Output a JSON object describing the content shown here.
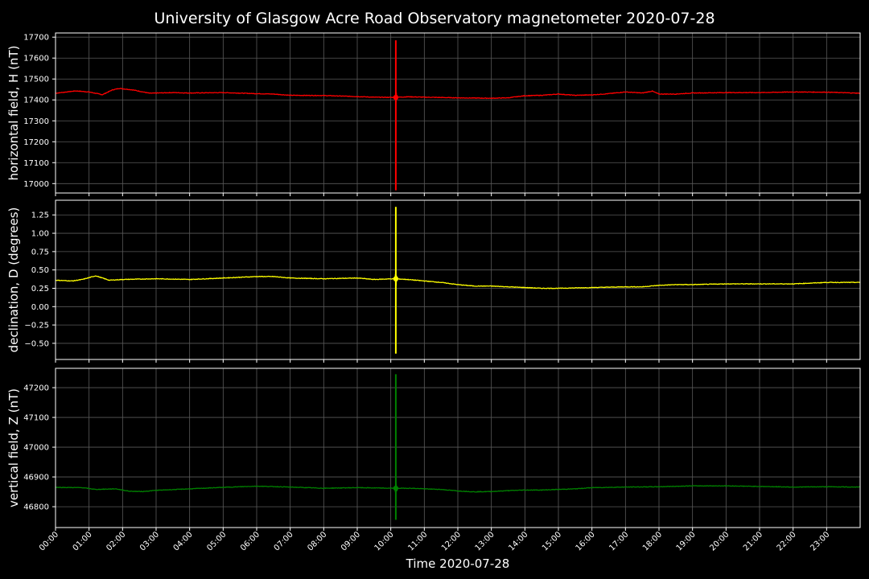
{
  "chart_data": {
    "type": "line",
    "title": "University of Glasgow Acre Road Observatory magnetometer 2020-07-28",
    "xlabel": "Time 2020-07-28",
    "x_ticks": [
      "00:00",
      "01:00",
      "02:00",
      "03:00",
      "04:00",
      "05:00",
      "06:00",
      "07:00",
      "08:00",
      "09:00",
      "10:00",
      "11:00",
      "12:00",
      "13:00",
      "14:00",
      "15:00",
      "16:00",
      "17:00",
      "18:00",
      "19:00",
      "20:00",
      "21:00",
      "22:00",
      "23:00"
    ],
    "x_range_hours": [
      0,
      24
    ],
    "grid": true,
    "background": "#000000",
    "grid_color": "#5a5a5a",
    "panels": [
      {
        "ylabel": "horizontal field, H (nT)",
        "color": "#ff0000",
        "ylim": [
          16955,
          17720
        ],
        "yticks": [
          17000,
          17100,
          17200,
          17300,
          17400,
          17500,
          17600,
          17700
        ],
        "ytick_labels": [
          "17000",
          "17100",
          "17200",
          "17300",
          "17400",
          "17500",
          "17600",
          "17700"
        ],
        "points": [
          [
            0,
            17432
          ],
          [
            0.6,
            17443
          ],
          [
            1,
            17438
          ],
          [
            1.4,
            17425
          ],
          [
            1.7,
            17448
          ],
          [
            1.9,
            17455
          ],
          [
            2.3,
            17448
          ],
          [
            2.8,
            17432
          ],
          [
            3.5,
            17435
          ],
          [
            4,
            17433
          ],
          [
            5,
            17435
          ],
          [
            6,
            17430
          ],
          [
            6.5,
            17428
          ],
          [
            7,
            17422
          ],
          [
            8,
            17421
          ],
          [
            9,
            17416
          ],
          [
            9.5,
            17413
          ],
          [
            10.1,
            17412
          ],
          [
            10.5,
            17415
          ],
          [
            11,
            17413
          ],
          [
            12,
            17410
          ],
          [
            13,
            17408
          ],
          [
            13.5,
            17410
          ],
          [
            14,
            17420
          ],
          [
            14.5,
            17422
          ],
          [
            15,
            17428
          ],
          [
            15.5,
            17422
          ],
          [
            16,
            17424
          ],
          [
            16.5,
            17430
          ],
          [
            17,
            17438
          ],
          [
            17.5,
            17433
          ],
          [
            17.8,
            17442
          ],
          [
            18,
            17428
          ],
          [
            18.5,
            17428
          ],
          [
            19,
            17433
          ],
          [
            20,
            17435
          ],
          [
            21,
            17435
          ],
          [
            22,
            17438
          ],
          [
            23,
            17437
          ],
          [
            24,
            17432
          ]
        ],
        "spike": {
          "x": 10.15,
          "min": 16968,
          "max": 17685,
          "center": 17412
        }
      },
      {
        "ylabel": "declination, D (degrees)",
        "color": "#ffff00",
        "ylim": [
          -0.72,
          1.45
        ],
        "yticks": [
          -0.5,
          -0.25,
          0,
          0.25,
          0.5,
          0.75,
          1.0,
          1.25
        ],
        "ytick_labels": [
          "−0.50",
          "−0.25",
          "0.00",
          "0.25",
          "0.50",
          "0.75",
          "1.00",
          "1.25"
        ],
        "points": [
          [
            0,
            0.36
          ],
          [
            0.5,
            0.35
          ],
          [
            0.8,
            0.37
          ],
          [
            1.2,
            0.42
          ],
          [
            1.6,
            0.36
          ],
          [
            2,
            0.37
          ],
          [
            3,
            0.38
          ],
          [
            4,
            0.37
          ],
          [
            5,
            0.39
          ],
          [
            6,
            0.41
          ],
          [
            6.5,
            0.41
          ],
          [
            7,
            0.39
          ],
          [
            8,
            0.38
          ],
          [
            9,
            0.39
          ],
          [
            9.5,
            0.37
          ],
          [
            10.1,
            0.38
          ],
          [
            10.5,
            0.37
          ],
          [
            11,
            0.35
          ],
          [
            11.5,
            0.33
          ],
          [
            12,
            0.3
          ],
          [
            12.5,
            0.28
          ],
          [
            13,
            0.28
          ],
          [
            13.5,
            0.27
          ],
          [
            14,
            0.26
          ],
          [
            14.5,
            0.25
          ],
          [
            15,
            0.25
          ],
          [
            16,
            0.26
          ],
          [
            17,
            0.27
          ],
          [
            17.5,
            0.27
          ],
          [
            18,
            0.29
          ],
          [
            18.5,
            0.3
          ],
          [
            19,
            0.3
          ],
          [
            20,
            0.31
          ],
          [
            21,
            0.31
          ],
          [
            22,
            0.31
          ],
          [
            23,
            0.33
          ],
          [
            24,
            0.33
          ]
        ],
        "spike": {
          "x": 10.15,
          "min": -0.64,
          "max": 1.36,
          "center": 0.38
        }
      },
      {
        "ylabel": "vertical field, Z (nT)",
        "color": "#008000",
        "ylim": [
          46730,
          47265
        ],
        "yticks": [
          46800,
          46900,
          47000,
          47100,
          47200
        ],
        "ytick_labels": [
          "46800",
          "46900",
          "47000",
          "47100",
          "47200"
        ],
        "points": [
          [
            0,
            46865
          ],
          [
            0.8,
            46864
          ],
          [
            1.2,
            46858
          ],
          [
            1.8,
            46860
          ],
          [
            2.2,
            46852
          ],
          [
            2.6,
            46851
          ],
          [
            3,
            46855
          ],
          [
            4,
            46860
          ],
          [
            5,
            46865
          ],
          [
            6,
            46869
          ],
          [
            7,
            46866
          ],
          [
            8,
            46862
          ],
          [
            9,
            46864
          ],
          [
            10,
            46862
          ],
          [
            10.6,
            46862
          ],
          [
            11,
            46860
          ],
          [
            11.5,
            46858
          ],
          [
            12,
            46853
          ],
          [
            12.5,
            46850
          ],
          [
            13,
            46851
          ],
          [
            13.5,
            46854
          ],
          [
            14,
            46856
          ],
          [
            14.5,
            46856
          ],
          [
            15,
            46858
          ],
          [
            15.5,
            46860
          ],
          [
            16,
            46864
          ],
          [
            17,
            46866
          ],
          [
            18,
            46867
          ],
          [
            19,
            46870
          ],
          [
            20,
            46870
          ],
          [
            21,
            46868
          ],
          [
            22,
            46866
          ],
          [
            23,
            46867
          ],
          [
            24,
            46866
          ]
        ],
        "spike": {
          "x": 10.15,
          "min": 46756,
          "max": 47245,
          "center": 46862
        }
      }
    ]
  }
}
